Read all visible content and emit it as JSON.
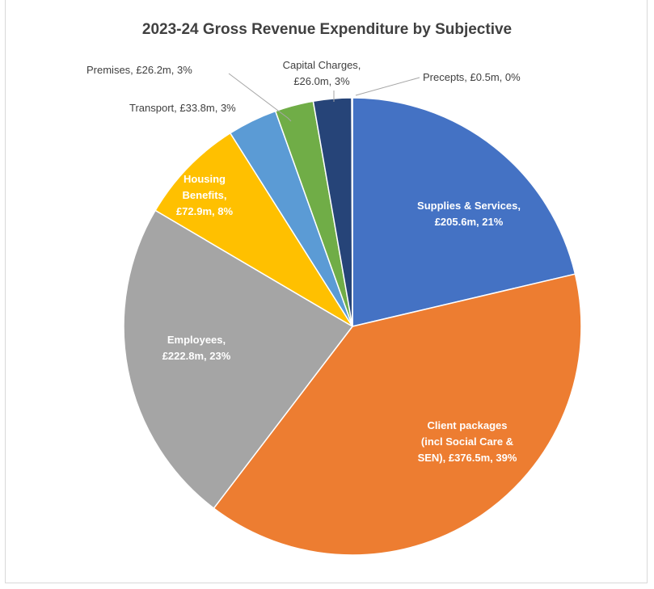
{
  "chart_data": {
    "type": "pie",
    "title": "2023-24 Gross Revenue Expenditure by Subjective",
    "slices": [
      {
        "name": "Supplies & Services",
        "value": 205.6,
        "percent": "21%",
        "color": "#4472C4",
        "label_lines": [
          "Supplies & Services,",
          "£205.6m, 21%"
        ],
        "label_style": "inside"
      },
      {
        "name": "Client packages (incl Social Care & SEN)",
        "value": 376.5,
        "percent": "39%",
        "color": "#ED7D31",
        "label_lines": [
          "Client packages",
          "(incl Social Care &",
          "SEN), £376.5m, 39%"
        ],
        "label_style": "inside"
      },
      {
        "name": "Employees",
        "value": 222.8,
        "percent": "23%",
        "color": "#A5A5A5",
        "label_lines": [
          "Employees,",
          "£222.8m, 23%"
        ],
        "label_style": "inside"
      },
      {
        "name": "Housing Benefits",
        "value": 72.9,
        "percent": "8%",
        "color": "#FFC000",
        "label_lines": [
          "Housing",
          "Benefits,",
          "£72.9m, 8%"
        ],
        "label_style": "inside"
      },
      {
        "name": "Transport",
        "value": 33.8,
        "percent": "3%",
        "color": "#5B9BD5",
        "label_lines": [
          "Transport, £33.8m, 3%"
        ],
        "label_style": "outside"
      },
      {
        "name": "Premises",
        "value": 26.2,
        "percent": "3%",
        "color": "#70AD47",
        "label_lines": [
          "Premises, £26.2m, 3%"
        ],
        "label_style": "outside"
      },
      {
        "name": "Capital Charges",
        "value": 26.0,
        "percent": "3%",
        "color": "#264478",
        "label_lines": [
          "Capital Charges,",
          "£26.0m, 3%"
        ],
        "label_style": "outside"
      },
      {
        "name": "Precepts",
        "value": 0.5,
        "percent": "0%",
        "color": "#9E480E",
        "label_lines": [
          "Precepts, £0.5m, 0%"
        ],
        "label_style": "outside"
      }
    ],
    "start_angle": "12 o'clock",
    "direction": "clockwise",
    "units": "£m"
  }
}
